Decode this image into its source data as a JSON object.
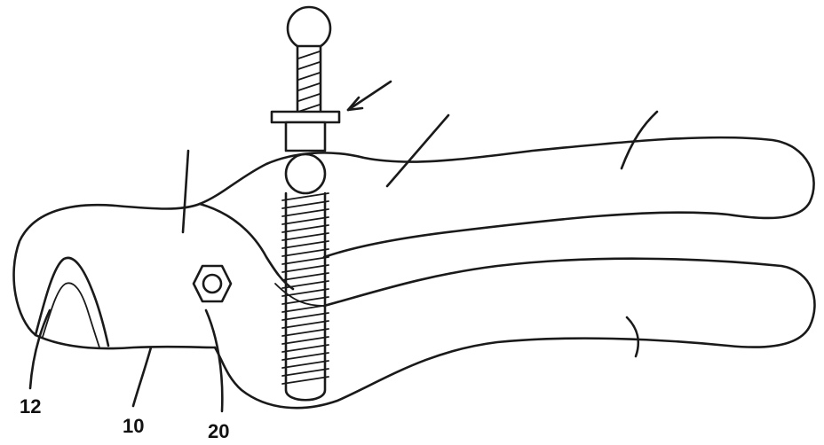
{
  "figure": {
    "reference_labels": {
      "blade": "12",
      "lower_jaw": "10",
      "pivot": "20"
    }
  }
}
